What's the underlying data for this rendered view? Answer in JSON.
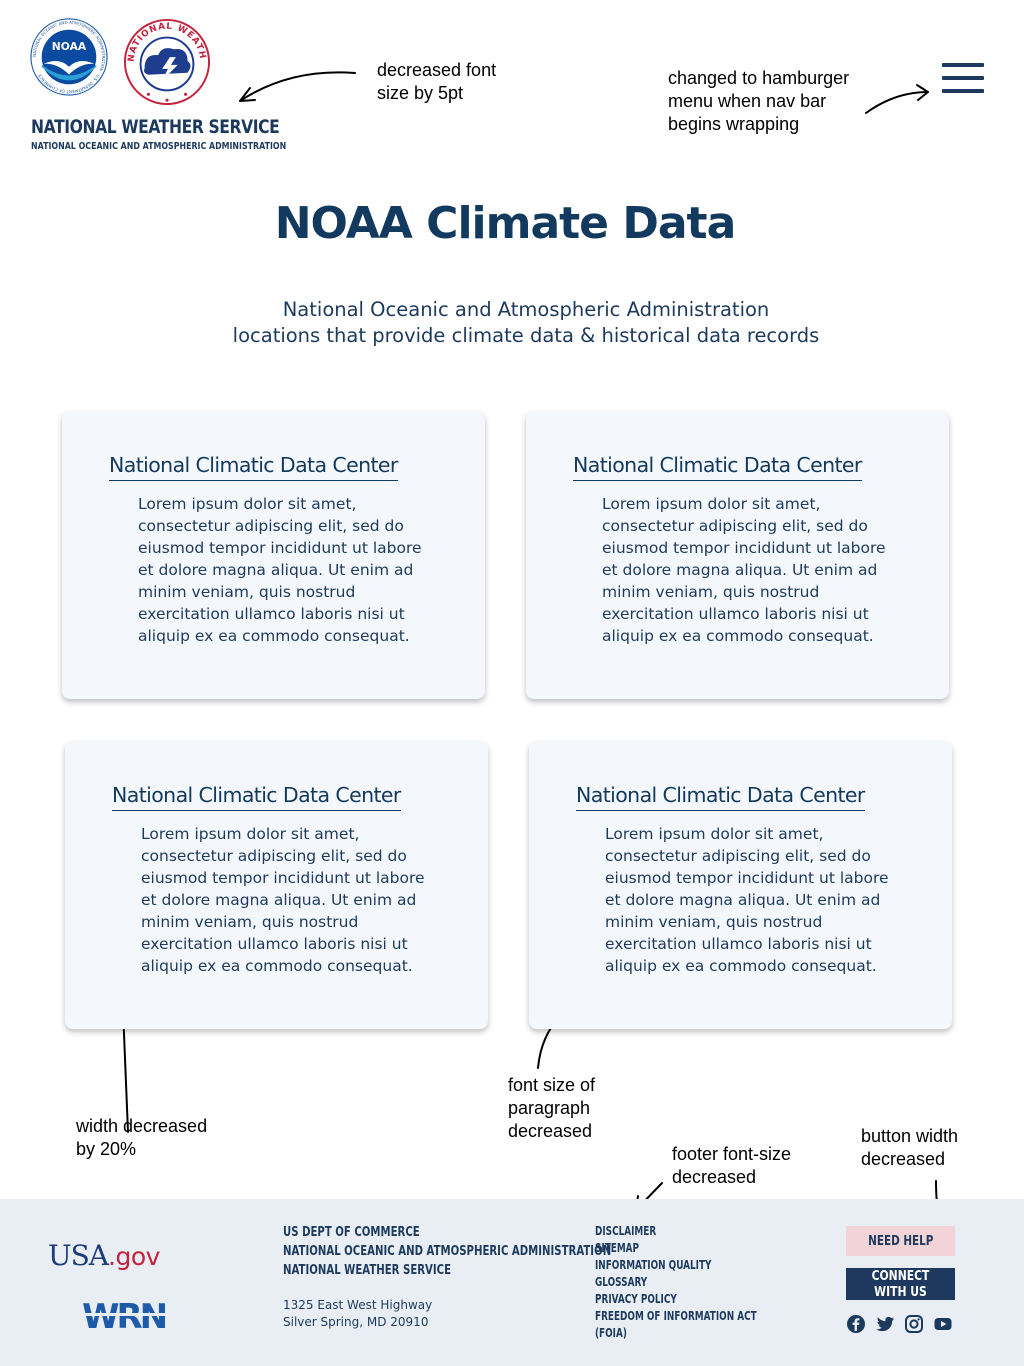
{
  "header": {
    "noaa_logo_text": "NOAA",
    "noaa_ring_text": "NATIONAL OCEANIC AND ATMOSPHERIC ADMINISTRATION · U.S. DEPARTMENT OF COMMERCE",
    "nws_ring_text": "NATIONAL WEATHER SERVICE",
    "brand_title": "NATIONAL WEATHER SERVICE",
    "brand_subtitle": "NATIONAL OCEANIC AND ATMOSPHERIC ADMINISTRATION",
    "menu_icon": "hamburger-menu-icon"
  },
  "main": {
    "title": "NOAA Climate Data",
    "subtitle_line1": "National Oceanic and Atmospheric Administration",
    "subtitle_line2": "locations that provide climate data & historical data records",
    "cards": [
      {
        "title": "National Climatic Data Center",
        "body": "Lorem ipsum dolor sit amet, consectetur adipiscing elit, sed do eiusmod tempor incididunt ut labore et dolore magna aliqua. Ut enim ad minim veniam, quis nostrud exercitation ullamco laboris nisi ut aliquip ex ea commodo consequat."
      },
      {
        "title": "National Climatic Data Center",
        "body": "Lorem ipsum dolor sit amet, consectetur adipiscing elit, sed do eiusmod tempor incididunt ut labore et dolore magna aliqua. Ut enim ad minim veniam, quis nostrud exercitation ullamco laboris nisi ut aliquip ex ea commodo consequat."
      },
      {
        "title": "National Climatic Data Center",
        "body": "Lorem ipsum dolor sit amet, consectetur adipiscing elit, sed do eiusmod tempor incididunt ut labore et dolore magna aliqua. Ut enim ad minim veniam, quis nostrud exercitation ullamco laboris nisi ut aliquip ex ea commodo consequat."
      },
      {
        "title": "National Climatic Data Center",
        "body": "Lorem ipsum dolor sit amet, consectetur adipiscing elit, sed do eiusmod tempor incididunt ut labore et dolore magna aliqua. Ut enim ad minim veniam, quis nostrud exercitation ullamco laboris nisi ut aliquip ex ea commodo consequat."
      }
    ]
  },
  "annotations": {
    "font_size_logo": "decreased font\nsize by 5pt",
    "hamburger": "changed to hamburger\nmenu when nav bar\nbegins wrapping",
    "width": "width decreased\nby 20%",
    "paragraph": "font size of\nparagraph\ndecreased",
    "footer": "footer font-size\ndecreased",
    "button": "button width\ndecreased"
  },
  "footer": {
    "usa_gov_prefix": "USA",
    "usa_gov_suffix": ".gov",
    "wrn_logo_text": "WRN",
    "org_lines": [
      "US DEPT OF COMMERCE",
      "NATIONAL OCEANIC AND ATMOSPHERIC ADMINISTRATION",
      "NATIONAL WEATHER SERVICE"
    ],
    "address_line1": "1325 East West Highway",
    "address_line2": "Silver Spring, MD 20910",
    "links": [
      "DISCLAIMER",
      "SITEMAP",
      "INFORMATION QUALITY",
      "GLOSSARY",
      "PRIVACY POLICY",
      "FREEDOM OF INFORMATION ACT",
      "(FOIA)"
    ],
    "need_help": "NEED HELP",
    "connect": "CONNECT WITH US",
    "social_icons": [
      "facebook-icon",
      "twitter-icon",
      "instagram-icon",
      "youtube-icon"
    ]
  },
  "colors": {
    "navy": "#1d3a5e",
    "title_navy": "#123a5f",
    "card_bg": "#f4f7fb",
    "footer_bg": "#e8eef3",
    "help_bg": "#f2d3d8",
    "usa_red": "#c4233b"
  }
}
